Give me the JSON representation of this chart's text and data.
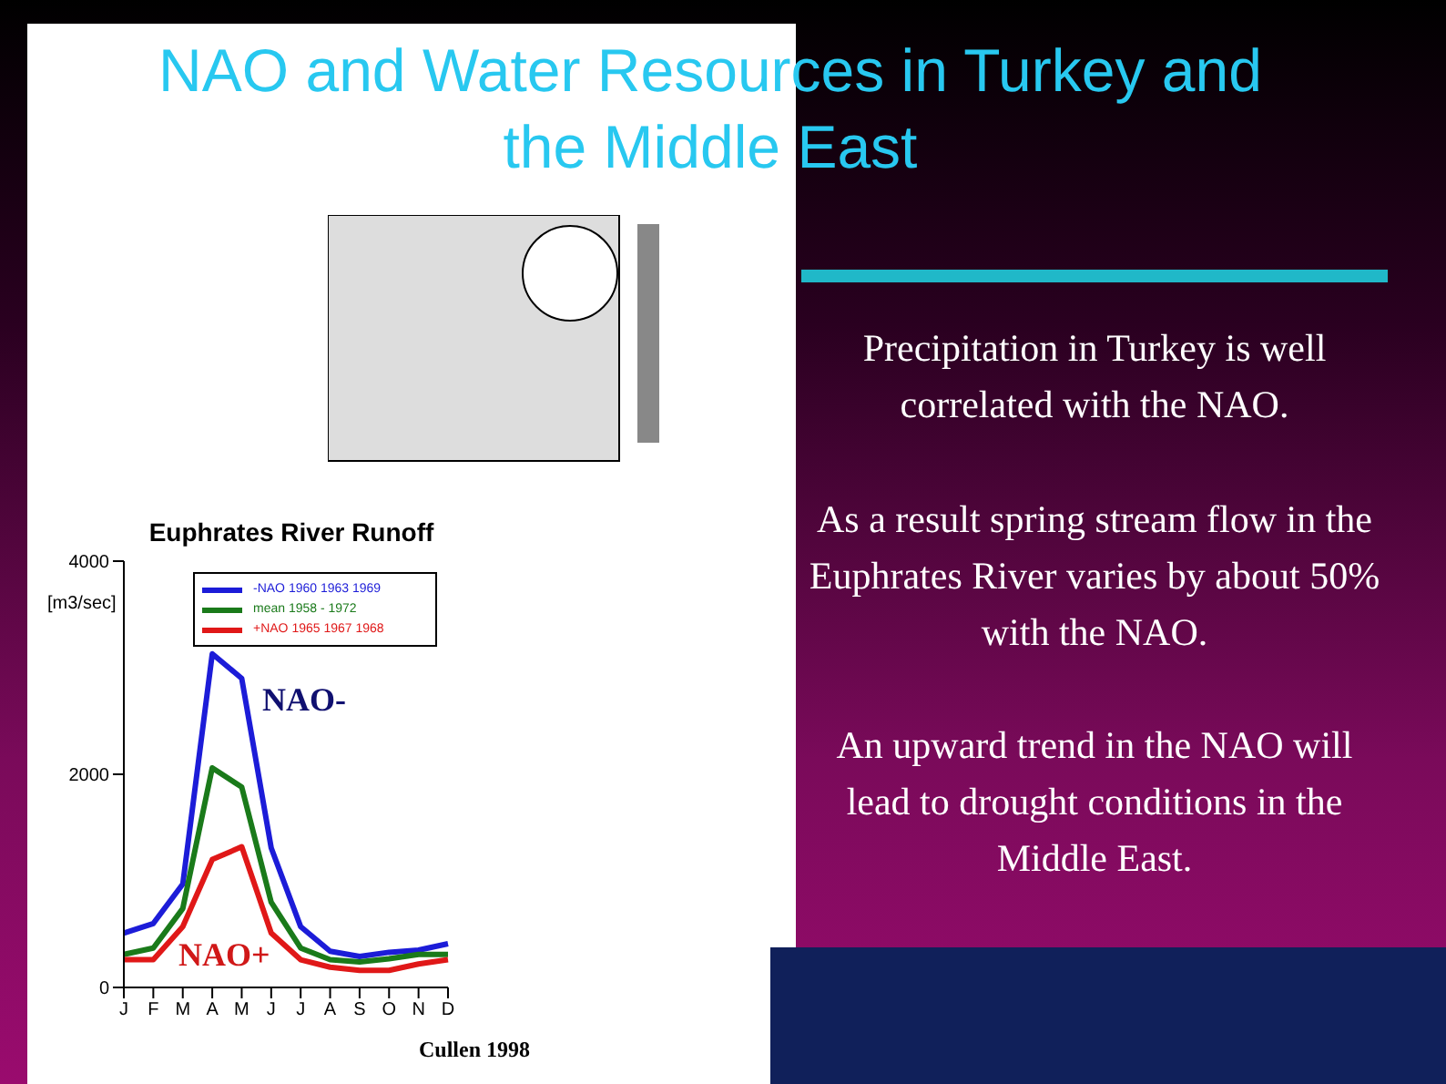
{
  "chart_data": {
    "type": "line",
    "title": "Euphrates River Runoff",
    "ylabel": "[m3/sec]",
    "categories": [
      "J",
      "F",
      "M",
      "A",
      "M",
      "J",
      "J",
      "A",
      "S",
      "O",
      "N",
      "D"
    ],
    "series": [
      {
        "name": "-NAO 1960 1963 1969",
        "color": "#1c1cd8",
        "values": [
          510,
          600,
          970,
          3130,
          2900,
          1310,
          570,
          340,
          290,
          330,
          350,
          410
        ]
      },
      {
        "name": "mean 1958 - 1972",
        "color": "#1a7a1a",
        "values": [
          310,
          370,
          740,
          2060,
          1880,
          800,
          370,
          260,
          240,
          270,
          310,
          310
        ]
      },
      {
        "name": "+NAO 1965 1967 1968",
        "color": "#e01818",
        "values": [
          260,
          260,
          570,
          1200,
          1320,
          510,
          260,
          190,
          160,
          160,
          220,
          260
        ]
      }
    ],
    "ylim": [
      0,
      4000
    ],
    "yticks": [
      0,
      2000,
      4000
    ],
    "grid": false,
    "legend": "top right",
    "marker": "none",
    "line_style": "solid",
    "annotations": [
      "NAO and Water Resources in Turkey and the Middle East",
      "Precipitation in Turkey is well correlated with the NAO.",
      "As a result spring stream flow in the Euphrates River varies by about 50% with the NAO.",
      "An upward trend in the NAO will lead to drought conditions in the Middle East.",
      "NAO-",
      "NAO+",
      "Cullen 1998"
    ]
  }
}
